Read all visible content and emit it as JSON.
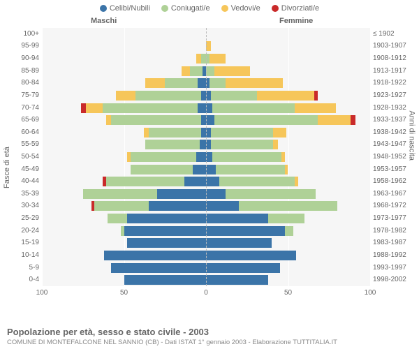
{
  "legend": [
    {
      "label": "Celibi/Nubili",
      "color": "#3b74a8"
    },
    {
      "label": "Coniugati/e",
      "color": "#afd197"
    },
    {
      "label": "Vedovi/e",
      "color": "#f6c65a"
    },
    {
      "label": "Divorziati/e",
      "color": "#c92a2a"
    }
  ],
  "gender_labels": {
    "m": "Maschi",
    "f": "Femmine"
  },
  "axis_left_title": "Fasce di età",
  "axis_right_title": "Anni di nascita",
  "xlim": 100,
  "xticks": [
    100,
    50,
    0,
    50,
    100
  ],
  "colors": {
    "single": "#3b74a8",
    "married": "#afd197",
    "widowed": "#f6c65a",
    "divorced": "#c92a2a",
    "plot_bg": "#f6f6f6",
    "grid": "#ffffff",
    "center": "#bbbbbb"
  },
  "title": "Popolazione per età, sesso e stato civile - 2003",
  "subtitle": "COMUNE DI MONTEFALCONE NEL SANNIO (CB) - Dati ISTAT 1° gennaio 2003 - Elaborazione TUTTITALIA.IT",
  "font_family": "Arial, Helvetica, sans-serif",
  "title_fontsize": 13,
  "label_fontsize": 10,
  "rows": [
    {
      "age": "100+",
      "year": "≤ 1902",
      "m": [
        0,
        0,
        0,
        0
      ],
      "f": [
        0,
        0,
        0,
        0
      ]
    },
    {
      "age": "95-99",
      "year": "1903-1907",
      "m": [
        0,
        0,
        0,
        0
      ],
      "f": [
        0,
        0,
        3,
        0
      ]
    },
    {
      "age": "90-94",
      "year": "1908-1912",
      "m": [
        0,
        3,
        3,
        0
      ],
      "f": [
        0,
        2,
        10,
        0
      ]
    },
    {
      "age": "85-89",
      "year": "1913-1917",
      "m": [
        2,
        8,
        5,
        0
      ],
      "f": [
        0,
        5,
        22,
        0
      ]
    },
    {
      "age": "80-84",
      "year": "1918-1922",
      "m": [
        5,
        20,
        12,
        0
      ],
      "f": [
        2,
        10,
        35,
        0
      ]
    },
    {
      "age": "75-79",
      "year": "1923-1927",
      "m": [
        3,
        40,
        12,
        0
      ],
      "f": [
        3,
        28,
        35,
        2
      ]
    },
    {
      "age": "70-74",
      "year": "1928-1932",
      "m": [
        5,
        58,
        10,
        3
      ],
      "f": [
        4,
        50,
        25,
        0
      ]
    },
    {
      "age": "65-69",
      "year": "1933-1937",
      "m": [
        3,
        55,
        3,
        0
      ],
      "f": [
        5,
        63,
        20,
        3
      ]
    },
    {
      "age": "60-64",
      "year": "1938-1942",
      "m": [
        3,
        32,
        3,
        0
      ],
      "f": [
        3,
        38,
        8,
        0
      ]
    },
    {
      "age": "55-59",
      "year": "1943-1947",
      "m": [
        4,
        33,
        0,
        0
      ],
      "f": [
        3,
        38,
        3,
        0
      ]
    },
    {
      "age": "50-54",
      "year": "1948-1952",
      "m": [
        6,
        40,
        2,
        0
      ],
      "f": [
        4,
        42,
        2,
        0
      ]
    },
    {
      "age": "45-49",
      "year": "1953-1957",
      "m": [
        8,
        38,
        0,
        0
      ],
      "f": [
        6,
        42,
        2,
        0
      ]
    },
    {
      "age": "40-44",
      "year": "1958-1962",
      "m": [
        13,
        48,
        0,
        2
      ],
      "f": [
        8,
        46,
        2,
        0
      ]
    },
    {
      "age": "35-39",
      "year": "1963-1967",
      "m": [
        30,
        45,
        0,
        0
      ],
      "f": [
        12,
        55,
        0,
        0
      ]
    },
    {
      "age": "30-34",
      "year": "1968-1972",
      "m": [
        35,
        33,
        0,
        2
      ],
      "f": [
        20,
        60,
        0,
        0
      ]
    },
    {
      "age": "25-29",
      "year": "1973-1977",
      "m": [
        48,
        12,
        0,
        0
      ],
      "f": [
        38,
        22,
        0,
        0
      ]
    },
    {
      "age": "20-24",
      "year": "1978-1982",
      "m": [
        50,
        2,
        0,
        0
      ],
      "f": [
        48,
        5,
        0,
        0
      ]
    },
    {
      "age": "15-19",
      "year": "1983-1987",
      "m": [
        48,
        0,
        0,
        0
      ],
      "f": [
        40,
        0,
        0,
        0
      ]
    },
    {
      "age": "10-14",
      "year": "1988-1992",
      "m": [
        62,
        0,
        0,
        0
      ],
      "f": [
        55,
        0,
        0,
        0
      ]
    },
    {
      "age": "5-9",
      "year": "1993-1997",
      "m": [
        58,
        0,
        0,
        0
      ],
      "f": [
        45,
        0,
        0,
        0
      ]
    },
    {
      "age": "0-4",
      "year": "1998-2002",
      "m": [
        50,
        0,
        0,
        0
      ],
      "f": [
        38,
        0,
        0,
        0
      ]
    }
  ]
}
